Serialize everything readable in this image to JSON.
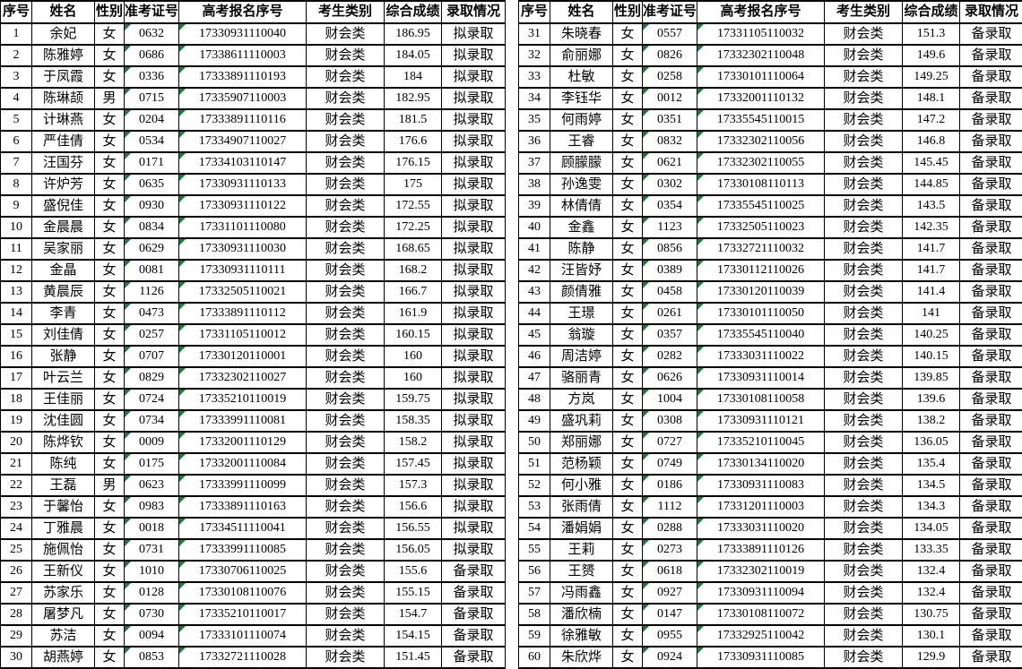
{
  "colors": {
    "background": "#ffffff",
    "grid_line": "#000000",
    "text": "#000000",
    "text_format_marker_green": "#1f7b3c"
  },
  "icons": {
    "text_format_indicator": "excel-green-corner-triangle-icon"
  },
  "table": {
    "headers": [
      "序号",
      "姓名",
      "性别",
      "准考证号",
      "高考报名序号",
      "考生类别",
      "综合成绩",
      "录取情况"
    ],
    "column_keys": [
      "index",
      "name",
      "gender",
      "ticket-no",
      "registration-no",
      "category",
      "score",
      "status"
    ],
    "marker_columns": [
      3,
      4
    ],
    "rows": [
      [
        "1",
        "余妃",
        "女",
        "0632",
        "17330931110040",
        "财会类",
        "186.95",
        "拟录取"
      ],
      [
        "2",
        "陈雅婷",
        "女",
        "0686",
        "17338611110003",
        "财会类",
        "184.05",
        "拟录取"
      ],
      [
        "3",
        "于凤霞",
        "女",
        "0336",
        "17333891110193",
        "财会类",
        "184",
        "拟录取"
      ],
      [
        "4",
        "陈琳颉",
        "男",
        "0715",
        "17335907110003",
        "财会类",
        "182.95",
        "拟录取"
      ],
      [
        "5",
        "计琳燕",
        "女",
        "0204",
        "17333891110116",
        "财会类",
        "181.5",
        "拟录取"
      ],
      [
        "6",
        "严佳倩",
        "女",
        "0534",
        "17334907110027",
        "财会类",
        "176.6",
        "拟录取"
      ],
      [
        "7",
        "汪国芬",
        "女",
        "0171",
        "17334103110147",
        "财会类",
        "176.15",
        "拟录取"
      ],
      [
        "8",
        "许炉芳",
        "女",
        "0635",
        "17330931110133",
        "财会类",
        "175",
        "拟录取"
      ],
      [
        "9",
        "盛倪佳",
        "女",
        "0930",
        "17330931110122",
        "财会类",
        "172.55",
        "拟录取"
      ],
      [
        "10",
        "金晨晨",
        "女",
        "0834",
        "17331101110080",
        "财会类",
        "172.25",
        "拟录取"
      ],
      [
        "11",
        "吴家丽",
        "女",
        "0629",
        "17330931110030",
        "财会类",
        "168.65",
        "拟录取"
      ],
      [
        "12",
        "金晶",
        "女",
        "0081",
        "17330931110111",
        "财会类",
        "168.2",
        "拟录取"
      ],
      [
        "13",
        "黄晨辰",
        "女",
        "1126",
        "17332505110021",
        "财会类",
        "166.7",
        "拟录取"
      ],
      [
        "14",
        "李青",
        "女",
        "0473",
        "17333891110112",
        "财会类",
        "161.9",
        "拟录取"
      ],
      [
        "15",
        "刘佳倩",
        "女",
        "0257",
        "17331105110012",
        "财会类",
        "160.15",
        "拟录取"
      ],
      [
        "16",
        "张静",
        "女",
        "0707",
        "17330120110001",
        "财会类",
        "160",
        "拟录取"
      ],
      [
        "17",
        "叶云兰",
        "女",
        "0829",
        "17332302110027",
        "财会类",
        "160",
        "拟录取"
      ],
      [
        "18",
        "王佳丽",
        "女",
        "0724",
        "17335210110019",
        "财会类",
        "159.75",
        "拟录取"
      ],
      [
        "19",
        "沈佳圆",
        "女",
        "0734",
        "17333991110081",
        "财会类",
        "158.35",
        "拟录取"
      ],
      [
        "20",
        "陈烨钦",
        "女",
        "0009",
        "17332001110129",
        "财会类",
        "158.2",
        "拟录取"
      ],
      [
        "21",
        "陈纯",
        "女",
        "0175",
        "17332001110084",
        "财会类",
        "157.45",
        "拟录取"
      ],
      [
        "22",
        "王磊",
        "男",
        "0623",
        "17333991110099",
        "财会类",
        "157.3",
        "拟录取"
      ],
      [
        "23",
        "于馨怡",
        "女",
        "0983",
        "17333891110163",
        "财会类",
        "156.6",
        "拟录取"
      ],
      [
        "24",
        "丁雅晨",
        "女",
        "0018",
        "17334511110041",
        "财会类",
        "156.55",
        "拟录取"
      ],
      [
        "25",
        "施佩怡",
        "女",
        "0731",
        "17333991110085",
        "财会类",
        "156.05",
        "拟录取"
      ],
      [
        "26",
        "王新仪",
        "女",
        "1010",
        "17330706110025",
        "财会类",
        "155.6",
        "备录取"
      ],
      [
        "27",
        "苏家乐",
        "女",
        "0128",
        "17330108110076",
        "财会类",
        "155.15",
        "备录取"
      ],
      [
        "28",
        "屠梦凡",
        "女",
        "0730",
        "17335210110017",
        "财会类",
        "154.7",
        "备录取"
      ],
      [
        "29",
        "苏洁",
        "女",
        "0094",
        "17333101110074",
        "财会类",
        "154.15",
        "备录取"
      ],
      [
        "30",
        "胡燕婷",
        "女",
        "0853",
        "17332721110028",
        "财会类",
        "151.45",
        "备录取"
      ],
      [
        "31",
        "朱晓春",
        "女",
        "0557",
        "17331105110032",
        "财会类",
        "151.3",
        "备录取"
      ],
      [
        "32",
        "俞丽娜",
        "女",
        "0826",
        "17332302110048",
        "财会类",
        "149.6",
        "备录取"
      ],
      [
        "33",
        "杜敏",
        "女",
        "0258",
        "17330101110064",
        "财会类",
        "149.25",
        "备录取"
      ],
      [
        "34",
        "李钰华",
        "女",
        "0012",
        "17332001110132",
        "财会类",
        "148.1",
        "备录取"
      ],
      [
        "35",
        "何雨婷",
        "女",
        "0351",
        "17335545110015",
        "财会类",
        "147.2",
        "备录取"
      ],
      [
        "36",
        "王睿",
        "女",
        "0832",
        "17332302110056",
        "财会类",
        "146.8",
        "备录取"
      ],
      [
        "37",
        "顾朦朦",
        "女",
        "0621",
        "17332302110055",
        "财会类",
        "145.45",
        "备录取"
      ],
      [
        "38",
        "孙逸雯",
        "女",
        "0302",
        "17330108110113",
        "财会类",
        "144.85",
        "备录取"
      ],
      [
        "39",
        "林倩倩",
        "女",
        "0354",
        "17335545110025",
        "财会类",
        "143.5",
        "备录取"
      ],
      [
        "40",
        "金鑫",
        "女",
        "1123",
        "17332505110023",
        "财会类",
        "142.35",
        "备录取"
      ],
      [
        "41",
        "陈静",
        "女",
        "0856",
        "17332721110032",
        "财会类",
        "141.7",
        "备录取"
      ],
      [
        "42",
        "汪皆妤",
        "女",
        "0389",
        "17330112110026",
        "财会类",
        "141.7",
        "备录取"
      ],
      [
        "43",
        "颜倩雅",
        "女",
        "0458",
        "17330120110039",
        "财会类",
        "141.4",
        "备录取"
      ],
      [
        "44",
        "王璟",
        "女",
        "0261",
        "17330101110050",
        "财会类",
        "141",
        "备录取"
      ],
      [
        "45",
        "翁璇",
        "女",
        "0357",
        "17335545110040",
        "财会类",
        "140.25",
        "备录取"
      ],
      [
        "46",
        "周洁婷",
        "女",
        "0282",
        "17333031110022",
        "财会类",
        "140.15",
        "备录取"
      ],
      [
        "47",
        "骆丽青",
        "女",
        "0626",
        "17330931110014",
        "财会类",
        "139.85",
        "备录取"
      ],
      [
        "48",
        "方岚",
        "女",
        "1004",
        "17330108110058",
        "财会类",
        "139.6",
        "备录取"
      ],
      [
        "49",
        "盛巩莉",
        "女",
        "0308",
        "17330931110121",
        "财会类",
        "138.2",
        "备录取"
      ],
      [
        "50",
        "郑丽娜",
        "女",
        "0727",
        "17335210110045",
        "财会类",
        "136.05",
        "备录取"
      ],
      [
        "51",
        "范杨颖",
        "女",
        "0749",
        "17330134110020",
        "财会类",
        "135.4",
        "备录取"
      ],
      [
        "52",
        "何小雅",
        "女",
        "0186",
        "17330931110083",
        "财会类",
        "134.5",
        "备录取"
      ],
      [
        "53",
        "张雨倩",
        "女",
        "1112",
        "17331201110003",
        "财会类",
        "134.3",
        "备录取"
      ],
      [
        "54",
        "潘娟娟",
        "女",
        "0288",
        "17333031110020",
        "财会类",
        "134.05",
        "备录取"
      ],
      [
        "55",
        "王莉",
        "女",
        "0273",
        "17333891110126",
        "财会类",
        "133.35",
        "备录取"
      ],
      [
        "56",
        "王赟",
        "女",
        "0618",
        "17332302110019",
        "财会类",
        "132.4",
        "备录取"
      ],
      [
        "57",
        "冯雨鑫",
        "女",
        "0927",
        "17330931110094",
        "财会类",
        "132.4",
        "备录取"
      ],
      [
        "58",
        "潘欣楠",
        "女",
        "0147",
        "17330108110072",
        "财会类",
        "130.75",
        "备录取"
      ],
      [
        "59",
        "徐雅敏",
        "女",
        "0955",
        "17332925110042",
        "财会类",
        "130.1",
        "备录取"
      ],
      [
        "60",
        "朱欣烨",
        "女",
        "0924",
        "17330931110085",
        "财会类",
        "129.9",
        "备录取"
      ]
    ]
  }
}
